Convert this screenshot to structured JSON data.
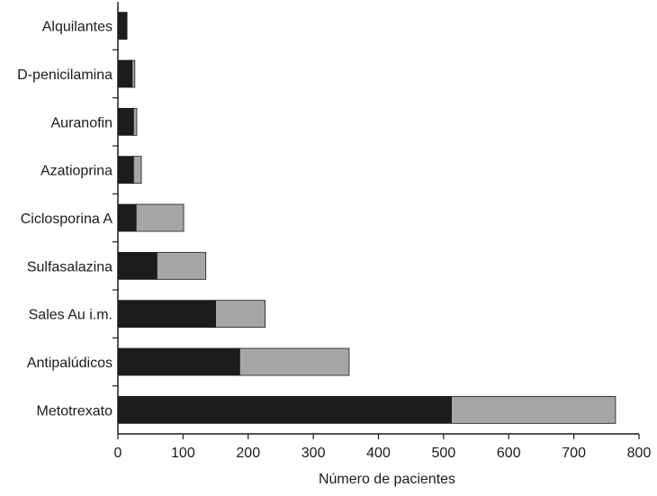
{
  "chart_data": {
    "type": "bar",
    "orientation": "horizontal",
    "stacked": true,
    "categories": [
      "Alquilantes",
      "D-penicilamina",
      "Auranofin",
      "Azatioprina",
      "Ciclosporina A",
      "Sulfasalazina",
      "Sales Au i.m.",
      "Antipalúdicos",
      "Metotrexato"
    ],
    "series": [
      {
        "color": "#1c1c1c",
        "values": [
          14,
          22,
          24,
          24,
          28,
          60,
          150,
          187,
          512
        ]
      },
      {
        "color": "#a6a6a6",
        "values": [
          0,
          4,
          5,
          12,
          73,
          75,
          76,
          168,
          252
        ]
      }
    ],
    "xlabel": "Número de pacientes",
    "ylabel": "",
    "xlim": [
      0,
      800
    ],
    "xticks": [
      0,
      100,
      200,
      300,
      400,
      500,
      600,
      700,
      800
    ],
    "grid": false,
    "legend": "none"
  }
}
